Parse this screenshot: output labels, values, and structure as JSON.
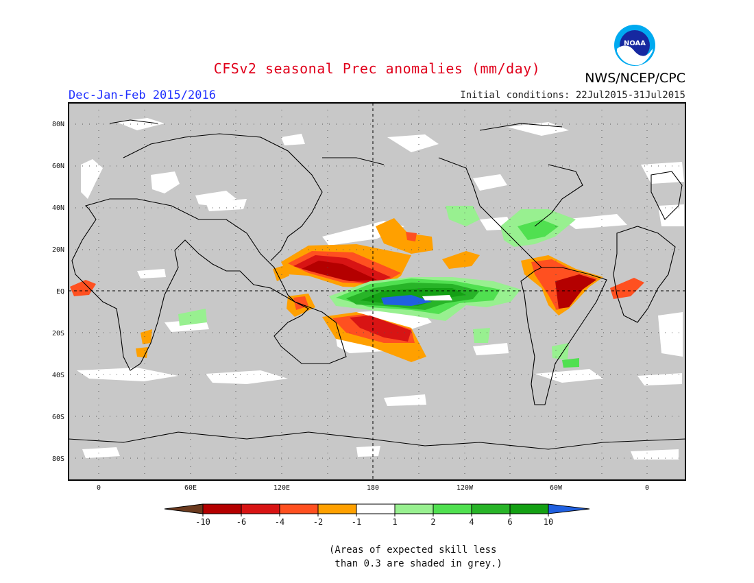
{
  "header": {
    "title": "CFSv2 seasonal Prec anomalies (mm/day)",
    "org": "NWS/NCEP/CPC",
    "logo_text": "NOAA",
    "season": "Dec-Jan-Feb 2015/2016",
    "initial_conditions": "Initial conditions: 22Jul2015-31Jul2015"
  },
  "map": {
    "lat_labels": [
      "80N",
      "60N",
      "40N",
      "20N",
      "EQ",
      "20S",
      "40S",
      "60S",
      "80S"
    ],
    "lon_labels": [
      "0",
      "60E",
      "120E",
      "180",
      "120W",
      "60W",
      "0"
    ],
    "background_color": "#c8c8c8"
  },
  "legend": {
    "colors": [
      "#6b3a1e",
      "#b40000",
      "#d81414",
      "#ff5020",
      "#ffa000",
      "#ffffff",
      "#98f090",
      "#50e050",
      "#28b428",
      "#14a014",
      "#2060e0"
    ],
    "labels": [
      "-10",
      "-6",
      "-4",
      "-2",
      "-1",
      "1",
      "2",
      "4",
      "6",
      "10"
    ]
  },
  "note": "(Areas of expected skill less\n than 0.3 are shaded in grey.)"
}
